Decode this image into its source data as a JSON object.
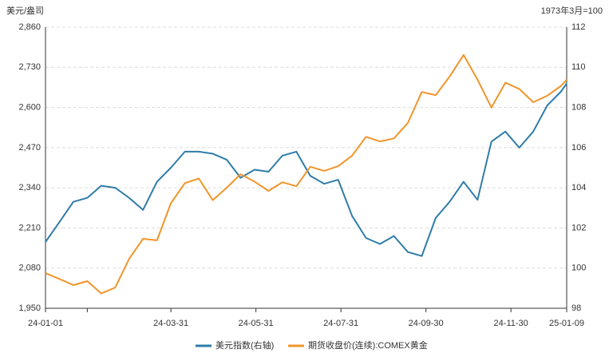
{
  "chart_data": {
    "type": "line",
    "y_unit_label": "美元/盎司",
    "y2_unit_label": "1973年3月=100",
    "x": [
      "24-01-01",
      "24-01-11",
      "24-01-21",
      "24-01-31",
      "24-02-10",
      "24-02-20",
      "24-03-01",
      "24-03-11",
      "24-03-21",
      "24-03-31",
      "24-04-10",
      "24-04-20",
      "24-04-30",
      "24-05-10",
      "24-05-20",
      "24-05-30",
      "24-06-09",
      "24-06-19",
      "24-06-29",
      "24-07-09",
      "24-07-19",
      "24-07-29",
      "24-08-08",
      "24-08-18",
      "24-08-28",
      "24-09-07",
      "24-09-17",
      "24-09-27",
      "24-10-07",
      "24-10-17",
      "24-10-27",
      "24-11-06",
      "24-11-16",
      "24-11-26",
      "24-12-06",
      "24-12-16",
      "24-12-26",
      "25-01-05",
      "25-01-09"
    ],
    "xlim": [
      "24-01-01",
      "25-01-09"
    ],
    "xticks": [
      "24-01-01",
      {
        "value": "24-01-31",
        "label": null
      },
      "24-03-31",
      "24-05-31",
      "24-07-31",
      "24-09-30",
      "24-11-30",
      "25-01-09"
    ],
    "series": [
      {
        "name": "美元指数(右轴)",
        "color": "#2f7ca8",
        "axis": "y2",
        "values": [
          101.3,
          102.3,
          103.3,
          103.5,
          104.1,
          104.0,
          103.5,
          102.9,
          104.3,
          105.0,
          105.8,
          105.8,
          105.7,
          105.4,
          104.5,
          104.9,
          104.8,
          105.6,
          105.8,
          104.6,
          104.2,
          104.4,
          102.6,
          101.5,
          101.2,
          101.6,
          100.8,
          100.6,
          102.5,
          103.3,
          104.3,
          103.4,
          106.3,
          106.8,
          106.0,
          106.8,
          108.1,
          108.8,
          109.2
        ]
      },
      {
        "name": "期货收盘价(连续):COMEX黄金",
        "color": "#f0952c",
        "axis": "y",
        "values": [
          2064,
          2045,
          2025,
          2038,
          1998,
          2017,
          2110,
          2175,
          2170,
          2290,
          2355,
          2370,
          2300,
          2340,
          2384,
          2360,
          2330,
          2358,
          2345,
          2408,
          2395,
          2410,
          2444,
          2505,
          2490,
          2500,
          2550,
          2650,
          2640,
          2700,
          2770,
          2690,
          2600,
          2680,
          2660,
          2617,
          2638,
          2670,
          2690
        ]
      }
    ],
    "ylim": [
      1950,
      2860
    ],
    "yticks": [
      {
        "value": 1950,
        "label": "1,950"
      },
      {
        "value": 2080,
        "label": "2,080"
      },
      {
        "value": 2210,
        "label": "2,210"
      },
      {
        "value": 2340,
        "label": "2,340"
      },
      {
        "value": 2470,
        "label": "2,470"
      },
      {
        "value": 2600,
        "label": "2,600"
      },
      {
        "value": 2730,
        "label": "2,730"
      },
      {
        "value": 2860,
        "label": "2,860"
      }
    ],
    "y2lim": [
      98,
      112
    ],
    "y2ticks": [
      98,
      100,
      102,
      104,
      106,
      108,
      110,
      112
    ],
    "grid": true,
    "legend": "bottom"
  }
}
